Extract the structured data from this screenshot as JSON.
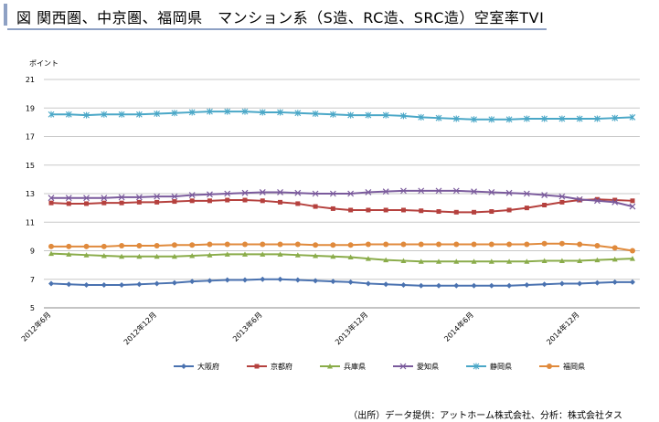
{
  "header": {
    "title": "図 関西圏、中京圏、福岡県　マンション系（S造、RC造、SRC造）空室率TVI"
  },
  "source_note": "（出所）データ提供：アットホーム株式会社、分析：株式会社タス",
  "chart_data": {
    "type": "line",
    "ylabel": "ポイント",
    "ylim": [
      5,
      21
    ],
    "yticks": [
      5,
      7,
      9,
      11,
      13,
      15,
      17,
      19,
      21
    ],
    "xtick_labels": [
      {
        "index": 0,
        "label": "2012年6月"
      },
      {
        "index": 6,
        "label": "2012年12月"
      },
      {
        "index": 12,
        "label": "2013年6月"
      },
      {
        "index": 18,
        "label": "2013年12月"
      },
      {
        "index": 24,
        "label": "2014年6月"
      },
      {
        "index": 30,
        "label": "2014年12月"
      }
    ],
    "grid": true,
    "legend_position": "bottom",
    "series": [
      {
        "name": "大阪府",
        "color": "#4a72b0",
        "marker": "diamond",
        "values": [
          6.7,
          6.65,
          6.6,
          6.6,
          6.6,
          6.65,
          6.7,
          6.75,
          6.85,
          6.9,
          6.95,
          6.95,
          7.0,
          7.0,
          6.95,
          6.9,
          6.85,
          6.8,
          6.7,
          6.65,
          6.6,
          6.55,
          6.55,
          6.55,
          6.55,
          6.55,
          6.55,
          6.6,
          6.65,
          6.7,
          6.7,
          6.75,
          6.8,
          6.8
        ]
      },
      {
        "name": "京都府",
        "color": "#b5413e",
        "marker": "square",
        "values": [
          12.35,
          12.3,
          12.3,
          12.35,
          12.35,
          12.4,
          12.4,
          12.45,
          12.5,
          12.5,
          12.55,
          12.55,
          12.5,
          12.4,
          12.3,
          12.1,
          11.95,
          11.85,
          11.85,
          11.85,
          11.85,
          11.8,
          11.75,
          11.7,
          11.7,
          11.75,
          11.85,
          12.0,
          12.2,
          12.4,
          12.55,
          12.6,
          12.55,
          12.5
        ]
      },
      {
        "name": "兵庫県",
        "color": "#8aac4a",
        "marker": "triangle",
        "values": [
          8.8,
          8.75,
          8.7,
          8.65,
          8.6,
          8.6,
          8.6,
          8.6,
          8.65,
          8.7,
          8.75,
          8.75,
          8.75,
          8.75,
          8.7,
          8.65,
          8.6,
          8.55,
          8.45,
          8.35,
          8.3,
          8.25,
          8.25,
          8.25,
          8.25,
          8.25,
          8.25,
          8.25,
          8.3,
          8.3,
          8.3,
          8.35,
          8.4,
          8.45
        ]
      },
      {
        "name": "愛知県",
        "color": "#7a5a9c",
        "marker": "x",
        "values": [
          12.7,
          12.7,
          12.7,
          12.7,
          12.75,
          12.75,
          12.8,
          12.8,
          12.9,
          12.95,
          13.0,
          13.05,
          13.1,
          13.1,
          13.05,
          13.0,
          13.0,
          13.0,
          13.1,
          13.15,
          13.2,
          13.2,
          13.2,
          13.2,
          13.15,
          13.1,
          13.05,
          13.0,
          12.9,
          12.8,
          12.6,
          12.5,
          12.4,
          12.1
        ]
      },
      {
        "name": "静岡県",
        "color": "#4aa7c7",
        "marker": "star",
        "values": [
          18.55,
          18.55,
          18.5,
          18.55,
          18.55,
          18.55,
          18.6,
          18.65,
          18.7,
          18.75,
          18.75,
          18.75,
          18.7,
          18.7,
          18.65,
          18.6,
          18.55,
          18.5,
          18.5,
          18.5,
          18.45,
          18.35,
          18.3,
          18.25,
          18.2,
          18.2,
          18.2,
          18.25,
          18.25,
          18.25,
          18.25,
          18.25,
          18.3,
          18.35
        ]
      },
      {
        "name": "福岡県",
        "color": "#e08a3c",
        "marker": "circle",
        "values": [
          9.3,
          9.3,
          9.3,
          9.3,
          9.35,
          9.35,
          9.35,
          9.4,
          9.4,
          9.45,
          9.45,
          9.45,
          9.45,
          9.45,
          9.45,
          9.4,
          9.4,
          9.4,
          9.45,
          9.45,
          9.45,
          9.45,
          9.45,
          9.45,
          9.45,
          9.45,
          9.45,
          9.45,
          9.5,
          9.5,
          9.45,
          9.35,
          9.2,
          9.0
        ]
      }
    ]
  }
}
